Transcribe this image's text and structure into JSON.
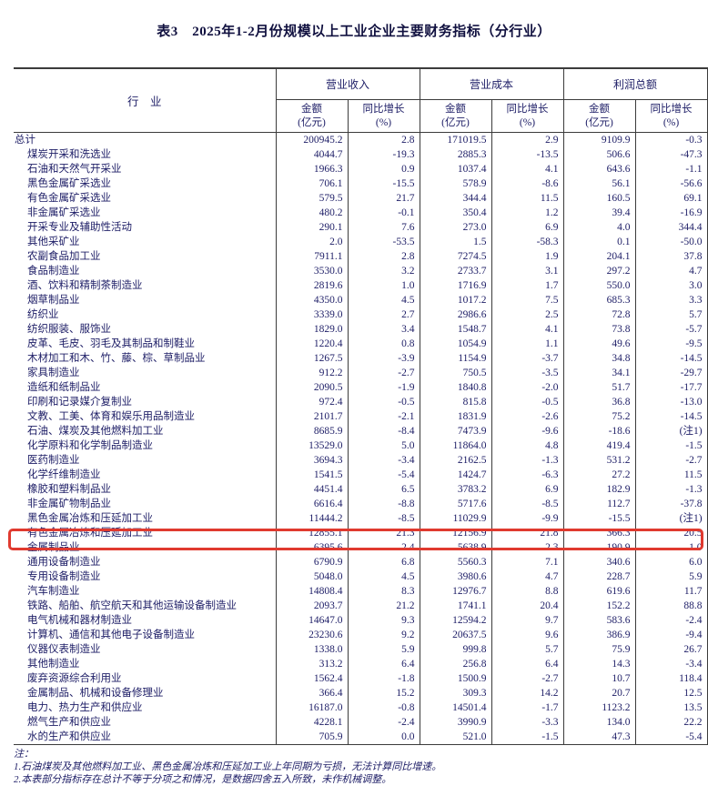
{
  "page": {
    "title": "表3　2025年1-2月份规模以上工业企业主要财务指标（分行业）"
  },
  "colors": {
    "accent_red": "#e03a2f",
    "text_navy": "#1d1d66"
  },
  "table": {
    "industry_header": "行　业",
    "groups": [
      {
        "label": "营业收入"
      },
      {
        "label": "营业成本"
      },
      {
        "label": "利润总额"
      }
    ],
    "sub_headers": {
      "amount_line1": "金额",
      "amount_line2": "(亿元)",
      "growth_line1": "同比增长",
      "growth_line2": "(%)"
    },
    "rows": [
      {
        "industry": "总计",
        "indent": false,
        "highlight": false,
        "values": [
          "200945.2",
          "2.8",
          "171019.5",
          "2.9",
          "9109.9",
          "-0.3"
        ]
      },
      {
        "industry": "煤炭开采和洗选业",
        "indent": true,
        "highlight": false,
        "values": [
          "4044.7",
          "-19.3",
          "2885.3",
          "-13.5",
          "506.6",
          "-47.3"
        ]
      },
      {
        "industry": "石油和天然气开采业",
        "indent": true,
        "highlight": false,
        "values": [
          "1966.3",
          "0.9",
          "1037.4",
          "4.1",
          "643.6",
          "-1.1"
        ]
      },
      {
        "industry": "黑色金属矿采选业",
        "indent": true,
        "highlight": false,
        "values": [
          "706.1",
          "-15.5",
          "578.9",
          "-8.6",
          "56.1",
          "-56.6"
        ]
      },
      {
        "industry": "有色金属矿采选业",
        "indent": true,
        "highlight": false,
        "values": [
          "579.5",
          "21.7",
          "344.4",
          "11.5",
          "160.5",
          "69.1"
        ]
      },
      {
        "industry": "非金属矿采选业",
        "indent": true,
        "highlight": false,
        "values": [
          "480.2",
          "-0.1",
          "350.4",
          "1.2",
          "39.4",
          "-16.9"
        ]
      },
      {
        "industry": "开采专业及辅助性活动",
        "indent": true,
        "highlight": false,
        "values": [
          "290.1",
          "7.6",
          "273.0",
          "6.9",
          "4.0",
          "344.4"
        ]
      },
      {
        "industry": "其他采矿业",
        "indent": true,
        "highlight": false,
        "values": [
          "2.0",
          "-53.5",
          "1.5",
          "-58.3",
          "0.1",
          "-50.0"
        ]
      },
      {
        "industry": "农副食品加工业",
        "indent": true,
        "highlight": false,
        "values": [
          "7911.1",
          "2.8",
          "7274.5",
          "1.9",
          "204.1",
          "37.8"
        ]
      },
      {
        "industry": "食品制造业",
        "indent": true,
        "highlight": false,
        "values": [
          "3530.0",
          "3.2",
          "2733.7",
          "3.1",
          "297.2",
          "4.7"
        ]
      },
      {
        "industry": "酒、饮料和精制茶制造业",
        "indent": true,
        "highlight": false,
        "values": [
          "2819.6",
          "1.0",
          "1716.9",
          "1.7",
          "550.0",
          "3.0"
        ]
      },
      {
        "industry": "烟草制品业",
        "indent": true,
        "highlight": false,
        "values": [
          "4350.0",
          "4.5",
          "1017.2",
          "7.5",
          "685.3",
          "3.3"
        ]
      },
      {
        "industry": "纺织业",
        "indent": true,
        "highlight": false,
        "values": [
          "3339.0",
          "2.7",
          "2986.6",
          "2.5",
          "72.8",
          "5.7"
        ]
      },
      {
        "industry": "纺织服装、服饰业",
        "indent": true,
        "highlight": false,
        "values": [
          "1829.0",
          "3.4",
          "1548.7",
          "4.1",
          "73.8",
          "-5.7"
        ]
      },
      {
        "industry": "皮革、毛皮、羽毛及其制品和制鞋业",
        "indent": true,
        "highlight": false,
        "values": [
          "1220.4",
          "0.8",
          "1054.9",
          "1.1",
          "49.6",
          "-9.5"
        ]
      },
      {
        "industry": "木材加工和木、竹、藤、棕、草制品业",
        "indent": true,
        "highlight": false,
        "values": [
          "1267.5",
          "-3.9",
          "1154.9",
          "-3.7",
          "34.8",
          "-14.5"
        ]
      },
      {
        "industry": "家具制造业",
        "indent": true,
        "highlight": false,
        "values": [
          "912.2",
          "-2.7",
          "750.5",
          "-3.5",
          "34.1",
          "-29.7"
        ]
      },
      {
        "industry": "造纸和纸制品业",
        "indent": true,
        "highlight": false,
        "values": [
          "2090.5",
          "-1.9",
          "1840.8",
          "-2.0",
          "51.7",
          "-17.7"
        ]
      },
      {
        "industry": "印刷和记录媒介复制业",
        "indent": true,
        "highlight": false,
        "values": [
          "972.4",
          "-0.5",
          "815.8",
          "-0.5",
          "36.8",
          "-13.0"
        ]
      },
      {
        "industry": "文教、工美、体育和娱乐用品制造业",
        "indent": true,
        "highlight": false,
        "values": [
          "2101.7",
          "-2.1",
          "1831.9",
          "-2.6",
          "75.2",
          "-14.5"
        ]
      },
      {
        "industry": "石油、煤炭及其他燃料加工业",
        "indent": true,
        "highlight": false,
        "values": [
          "8685.9",
          "-8.4",
          "7473.9",
          "-9.6",
          "-18.6",
          "(注1)"
        ]
      },
      {
        "industry": "化学原料和化学制品制造业",
        "indent": true,
        "highlight": false,
        "values": [
          "13529.0",
          "5.0",
          "11864.0",
          "4.8",
          "419.4",
          "-1.5"
        ]
      },
      {
        "industry": "医药制造业",
        "indent": true,
        "highlight": false,
        "values": [
          "3694.3",
          "-3.4",
          "2162.5",
          "-1.3",
          "531.2",
          "-2.7"
        ]
      },
      {
        "industry": "化学纤维制造业",
        "indent": true,
        "highlight": false,
        "values": [
          "1541.5",
          "-5.4",
          "1424.7",
          "-6.3",
          "27.2",
          "11.5"
        ]
      },
      {
        "industry": "橡胶和塑料制品业",
        "indent": true,
        "highlight": false,
        "values": [
          "4451.4",
          "6.5",
          "3783.2",
          "6.9",
          "182.9",
          "-1.3"
        ]
      },
      {
        "industry": "非金属矿物制品业",
        "indent": true,
        "highlight": false,
        "values": [
          "6616.4",
          "-8.8",
          "5717.6",
          "-8.5",
          "112.7",
          "-37.8"
        ]
      },
      {
        "industry": "黑色金属冶炼和压延加工业",
        "indent": true,
        "highlight": true,
        "values": [
          "11444.2",
          "-8.5",
          "11029.9",
          "-9.9",
          "-15.5",
          "(注1)"
        ]
      },
      {
        "industry": "有色金属冶炼和压延加工业",
        "indent": true,
        "highlight": false,
        "values": [
          "12855.1",
          "21.3",
          "12156.9",
          "21.8",
          "366.3",
          "20.5"
        ]
      },
      {
        "industry": "金属制品业",
        "indent": true,
        "highlight": false,
        "values": [
          "6395.6",
          "2.4",
          "5638.9",
          "2.3",
          "190.9",
          "1.0"
        ]
      },
      {
        "industry": "通用设备制造业",
        "indent": true,
        "highlight": false,
        "values": [
          "6790.9",
          "6.8",
          "5560.3",
          "7.1",
          "340.6",
          "6.0"
        ]
      },
      {
        "industry": "专用设备制造业",
        "indent": true,
        "highlight": false,
        "values": [
          "5048.0",
          "4.5",
          "3980.6",
          "4.7",
          "228.7",
          "5.9"
        ]
      },
      {
        "industry": "汽车制造业",
        "indent": true,
        "highlight": false,
        "values": [
          "14808.4",
          "8.3",
          "12976.7",
          "8.8",
          "619.6",
          "11.7"
        ]
      },
      {
        "industry": "铁路、船舶、航空航天和其他运输设备制造业",
        "indent": true,
        "highlight": false,
        "values": [
          "2093.7",
          "21.2",
          "1741.1",
          "20.4",
          "152.2",
          "88.8"
        ]
      },
      {
        "industry": "电气机械和器材制造业",
        "indent": true,
        "highlight": false,
        "values": [
          "14647.0",
          "9.3",
          "12594.2",
          "9.7",
          "583.6",
          "-2.4"
        ]
      },
      {
        "industry": "计算机、通信和其他电子设备制造业",
        "indent": true,
        "highlight": false,
        "values": [
          "23230.6",
          "9.2",
          "20637.5",
          "9.6",
          "386.9",
          "-9.4"
        ]
      },
      {
        "industry": "仪器仪表制造业",
        "indent": true,
        "highlight": false,
        "values": [
          "1338.0",
          "5.9",
          "999.8",
          "5.7",
          "75.9",
          "26.7"
        ]
      },
      {
        "industry": "其他制造业",
        "indent": true,
        "highlight": false,
        "values": [
          "313.2",
          "6.4",
          "256.8",
          "6.4",
          "14.3",
          "-3.4"
        ]
      },
      {
        "industry": "废弃资源综合利用业",
        "indent": true,
        "highlight": false,
        "values": [
          "1562.4",
          "-1.8",
          "1500.9",
          "-2.7",
          "10.7",
          "118.4"
        ]
      },
      {
        "industry": "金属制品、机械和设备修理业",
        "indent": true,
        "highlight": false,
        "values": [
          "366.4",
          "15.2",
          "309.3",
          "14.2",
          "20.7",
          "12.5"
        ]
      },
      {
        "industry": "电力、热力生产和供应业",
        "indent": true,
        "highlight": false,
        "values": [
          "16187.0",
          "-0.8",
          "14501.4",
          "-1.7",
          "1123.2",
          "13.5"
        ]
      },
      {
        "industry": "燃气生产和供应业",
        "indent": true,
        "highlight": false,
        "values": [
          "4228.1",
          "-2.4",
          "3990.9",
          "-3.3",
          "134.0",
          "22.2"
        ]
      },
      {
        "industry": "水的生产和供应业",
        "indent": true,
        "highlight": false,
        "values": [
          "705.9",
          "0.0",
          "521.0",
          "-1.5",
          "47.3",
          "-5.4"
        ]
      }
    ]
  },
  "notes": {
    "label": "注：",
    "items": [
      "1.石油煤炭及其他燃料加工业、黑色金属冶炼和压延加工业上年同期为亏损，无法计算同比增速。",
      "2.本表部分指标存在总计不等于分项之和情况，是数据四舍五入所致，未作机械调整。"
    ]
  }
}
